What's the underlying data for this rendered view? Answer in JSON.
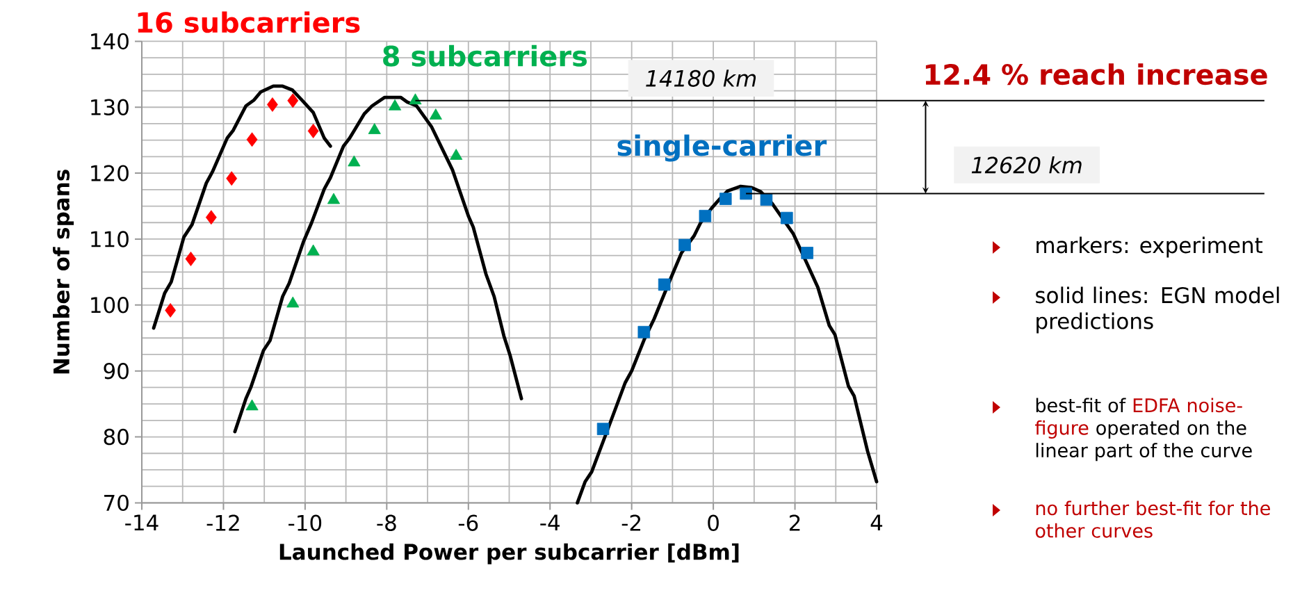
{
  "chart_data": {
    "type": "scatter",
    "xlabel": "Launched Power per subcarrier [dBm]",
    "ylabel": "Number of spans",
    "xlim": [
      -14,
      4
    ],
    "ylim": [
      70,
      140
    ],
    "xticks": [
      -14,
      -12,
      -10,
      -8,
      -6,
      -4,
      -2,
      0,
      2,
      4
    ],
    "yticks": [
      70,
      80,
      90,
      100,
      110,
      120,
      130,
      140
    ],
    "grid": true,
    "line_style": "solid",
    "ref_lines": [
      {
        "axis": "y",
        "value": 131.0,
        "label": "14180 km",
        "color": "#000000"
      },
      {
        "axis": "y",
        "value": 116.9,
        "label": "12620 km",
        "color": "#000000"
      }
    ],
    "series": [
      {
        "name": "16 subcarriers",
        "marker": "diamond",
        "color": "#ff0000",
        "x": [
          -13.3,
          -12.8,
          -12.3,
          -11.8,
          -11.3,
          -10.8,
          -10.3,
          -9.8
        ],
        "values": [
          99.2,
          107.0,
          113.3,
          119.2,
          125.1,
          130.4,
          131.0,
          126.4
        ]
      },
      {
        "name": "8 subcarriers",
        "marker": "triangle",
        "color": "#00b050",
        "x": [
          -11.3,
          -10.3,
          -9.8,
          -9.3,
          -8.8,
          -8.3,
          -7.8,
          -7.3,
          -6.8,
          -6.3
        ],
        "values": [
          84.6,
          100.2,
          108.1,
          115.9,
          121.6,
          126.5,
          130.1,
          131.0,
          128.7,
          122.6
        ]
      },
      {
        "name": "single-carrier",
        "marker": "square",
        "color": "#0070c0",
        "x": [
          -2.7,
          -1.7,
          -1.2,
          -0.7,
          -0.2,
          0.3,
          0.8,
          1.3,
          1.8,
          2.3
        ],
        "values": [
          81.2,
          95.9,
          103.1,
          109.1,
          113.5,
          116.1,
          116.9,
          116.0,
          113.2,
          107.9
        ]
      },
      {
        "type": "line",
        "marker": "none",
        "color": "#000000",
        "x": [
          -13.71,
          -13.44,
          -13.28,
          -12.97,
          -12.77,
          -12.42,
          -12.27,
          -11.91,
          -11.76,
          -11.45,
          -11.25,
          -11.09,
          -10.78,
          -10.55,
          -10.31,
          -10.08,
          -9.8,
          -9.53,
          -9.38
        ],
        "values": [
          96.5,
          101.8,
          103.5,
          110.3,
          112.2,
          118.5,
          120.2,
          125.3,
          126.5,
          130.2,
          131.1,
          132.3,
          133.2,
          133.2,
          132.6,
          131.1,
          129.2,
          125.3,
          124.1
        ]
      },
      {
        "type": "line",
        "marker": "none",
        "color": "#000000",
        "x": [
          -11.72,
          -11.45,
          -11.33,
          -11.02,
          -10.86,
          -10.55,
          -10.39,
          -10.04,
          -9.84,
          -9.53,
          -9.38,
          -9.06,
          -8.91,
          -8.55,
          -8.36,
          -8.05,
          -7.66,
          -7.5,
          -7.27,
          -6.9,
          -6.39,
          -6.0,
          -5.88,
          -5.57,
          -5.37,
          -5.13,
          -4.98,
          -4.7
        ],
        "values": [
          80.8,
          85.8,
          87.5,
          93.1,
          94.6,
          101.3,
          103.3,
          109.6,
          112.5,
          117.6,
          119.3,
          124.1,
          125.3,
          129.0,
          130.2,
          131.5,
          131.5,
          130.8,
          130.2,
          127.0,
          120.5,
          113.5,
          111.8,
          104.7,
          101.3,
          95.3,
          92.4,
          85.8
        ]
      },
      {
        "type": "line",
        "marker": "none",
        "color": "#000000",
        "x": [
          -3.33,
          -3.14,
          -2.98,
          -2.51,
          -2.16,
          -2.0,
          -1.69,
          -1.45,
          -1.06,
          -0.78,
          -0.47,
          -0.31,
          -0.04,
          0.16,
          0.35,
          0.67,
          0.94,
          1.16,
          1.44,
          1.96,
          2.28,
          2.56,
          2.84,
          2.98,
          3.31,
          3.45,
          3.78,
          4.0
        ],
        "values": [
          70.0,
          73.2,
          74.7,
          82.4,
          88.2,
          90.0,
          94.8,
          97.9,
          103.8,
          107.9,
          110.5,
          112.5,
          114.7,
          116.1,
          117.3,
          118.0,
          117.8,
          117.2,
          115.4,
          110.8,
          106.5,
          102.7,
          96.9,
          95.5,
          87.7,
          86.2,
          77.8,
          73.2
        ]
      }
    ],
    "annotations": [
      "12.4 % reach increase",
      "markers: experiment",
      "solid lines: EGN model predictions",
      "best-fit of",
      "EDFA noise-figure",
      "operated on the linear part of the curve",
      "no further best-fit for the other curves"
    ]
  }
}
